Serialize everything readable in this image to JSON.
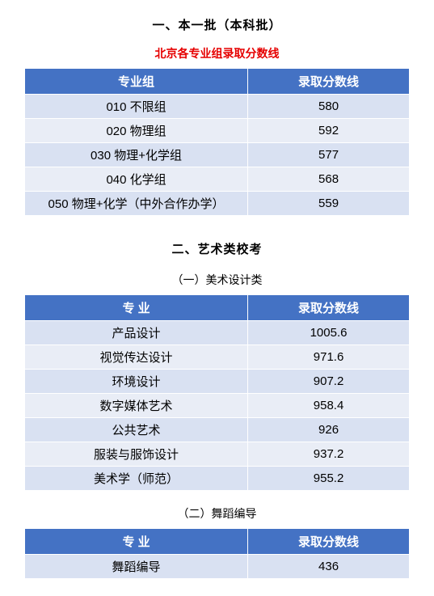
{
  "section1": {
    "title": "一、本一批（本科批）",
    "subtitle": "北京各专业组录取分数线",
    "headers": {
      "col1": "专业组",
      "col2": "录取分数线"
    },
    "rows": [
      {
        "c1": "010 不限组",
        "c2": "580"
      },
      {
        "c1": "020 物理组",
        "c2": "592"
      },
      {
        "c1": "030 物理+化学组",
        "c2": "577"
      },
      {
        "c1": "040 化学组",
        "c2": "568"
      },
      {
        "c1": "050 物理+化学（中外合作办学）",
        "c2": "559"
      }
    ]
  },
  "section2": {
    "title": "二、艺术类校考",
    "sub1": {
      "title": "（一）美术设计类",
      "headers": {
        "col1": "专 业",
        "col2": "录取分数线"
      },
      "rows": [
        {
          "c1": "产品设计",
          "c2": "1005.6"
        },
        {
          "c1": "视觉传达设计",
          "c2": "971.6"
        },
        {
          "c1": "环境设计",
          "c2": "907.2"
        },
        {
          "c1": "数字媒体艺术",
          "c2": "958.4"
        },
        {
          "c1": "公共艺术",
          "c2": "926"
        },
        {
          "c1": "服装与服饰设计",
          "c2": "937.2"
        },
        {
          "c1": "美术学（师范）",
          "c2": "955.2"
        }
      ]
    },
    "sub2": {
      "title": "（二）舞蹈编导",
      "headers": {
        "col1": "专 业",
        "col2": "录取分数线"
      },
      "rows": [
        {
          "c1": "舞蹈编导",
          "c2": "436"
        }
      ]
    }
  },
  "styling": {
    "header_bg": "#4472c4",
    "header_fg": "#ffffff",
    "row_odd_bg": "#d9e1f2",
    "row_even_bg": "#e9edf6",
    "title_color": "#000000",
    "subtitle_red_color": "#e60000",
    "body_bg": "#ffffff",
    "col_left_width_pct": 58,
    "col_right_width_pct": 42,
    "title_fontsize": 15,
    "subtitle_fontsize": 14,
    "cell_fontsize": 15
  }
}
